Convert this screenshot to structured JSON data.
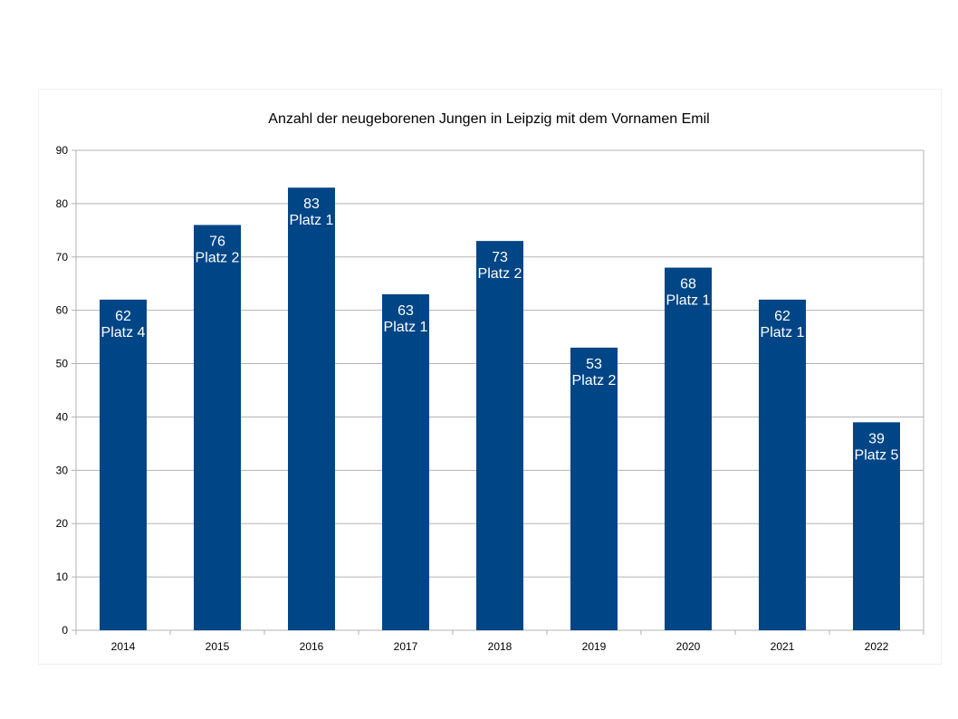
{
  "chart_data": {
    "type": "bar",
    "title": "Anzahl der neugeborenen Jungen in Leipzig mit dem Vornamen Emil",
    "xlabel": "",
    "ylabel": "",
    "categories": [
      "2014",
      "2015",
      "2016",
      "2017",
      "2018",
      "2019",
      "2020",
      "2021",
      "2022"
    ],
    "values": [
      62,
      76,
      83,
      63,
      73,
      53,
      68,
      62,
      39
    ],
    "rank_labels": [
      "Platz 4",
      "Platz 2",
      "Platz 1",
      "Platz 1",
      "Platz 2",
      "Platz 2",
      "Platz 1",
      "Platz 1",
      "Platz 5"
    ],
    "ylim": [
      0,
      90
    ],
    "yticks": [
      0,
      10,
      20,
      30,
      40,
      50,
      60,
      70,
      80,
      90
    ],
    "grid": true,
    "legend": "none",
    "bar_color": "#004586",
    "grid_color": "#b3b3b3",
    "label_color": "#ffffff"
  }
}
